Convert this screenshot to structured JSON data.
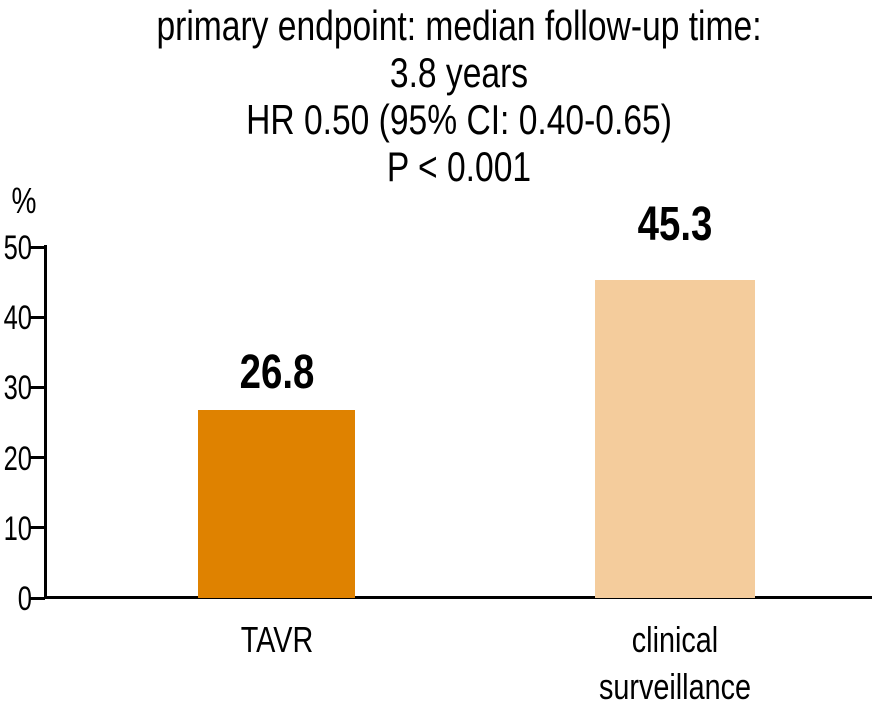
{
  "chart_data": {
    "type": "bar",
    "title_lines": [
      "primary endpoint: median follow-up time:",
      "3.8 years",
      "HR 0.50 (95% CI: 0.40-0.65)",
      "P < 0.001"
    ],
    "ylabel": "%",
    "xlabel": "",
    "ylim": [
      0,
      50
    ],
    "yticks": [
      0,
      10,
      20,
      30,
      40,
      50
    ],
    "categories": [
      "TAVR",
      "clinical surveillance"
    ],
    "values": [
      26.8,
      45.3
    ],
    "value_labels": [
      "26.8",
      "45.3"
    ],
    "bar_colors": [
      "#df8200",
      "#f4cc9c"
    ],
    "axis_color": "#000000",
    "text_color": "#000000",
    "grid": false,
    "legend_position": "none"
  }
}
